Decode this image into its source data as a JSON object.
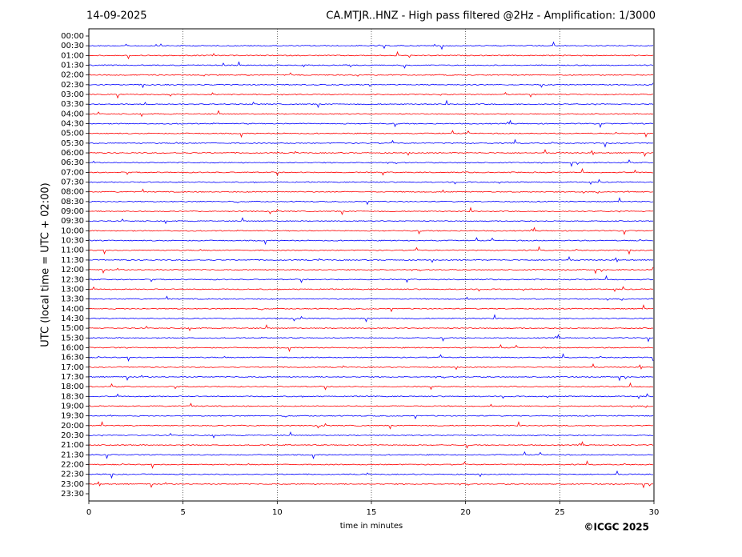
{
  "chart_data": {
    "type": "helicorder",
    "date": "14-09-2025",
    "title": "CA.MTJR..HNZ - High pass filtered @2Hz - Amplification: 1/3000",
    "x_label": "time in minutes",
    "y_label": "UTC (local time = UTC + 02:00)",
    "copyright": "©ICGC 2025",
    "xlim": [
      0,
      30
    ],
    "xticks": [
      0,
      5,
      10,
      15,
      20,
      25,
      30
    ],
    "grid": true,
    "categories": [
      "00:00",
      "00:30",
      "01:00",
      "01:30",
      "02:00",
      "02:30",
      "03:00",
      "03:30",
      "04:00",
      "04:30",
      "05:00",
      "05:30",
      "06:00",
      "06:30",
      "07:00",
      "07:30",
      "08:00",
      "08:30",
      "09:00",
      "09:30",
      "10:00",
      "10:30",
      "11:00",
      "11:30",
      "12:00",
      "12:30",
      "13:00",
      "13:30",
      "14:00",
      "14:30",
      "15:00",
      "15:30",
      "16:00",
      "16:30",
      "17:00",
      "17:30",
      "18:00",
      "18:30",
      "19:00",
      "19:30",
      "20:00",
      "20:30",
      "21:00",
      "21:30",
      "22:00",
      "22:30",
      "23:00",
      "23:30"
    ],
    "row_colors": [
      null,
      "#0000ff",
      "#ff0000",
      "#0000ff",
      "#ff0000",
      "#0000ff",
      "#ff0000",
      "#0000ff",
      "#ff0000",
      "#0000ff",
      "#ff0000",
      "#0000ff",
      "#ff0000",
      "#0000ff",
      "#ff0000",
      "#0000ff",
      "#ff0000",
      "#0000ff",
      "#ff0000",
      "#0000ff",
      "#ff0000",
      "#0000ff",
      "#ff0000",
      "#0000ff",
      "#ff0000",
      "#0000ff",
      "#ff0000",
      "#0000ff",
      "#ff0000",
      "#0000ff",
      "#ff0000",
      "#0000ff",
      "#ff0000",
      "#0000ff",
      "#ff0000",
      "#0000ff",
      "#ff0000",
      "#0000ff",
      "#ff0000",
      "#0000ff",
      "#ff0000",
      "#0000ff",
      "#ff0000",
      "#0000ff",
      "#ff0000",
      "#0000ff",
      "#ff0000",
      null
    ]
  }
}
